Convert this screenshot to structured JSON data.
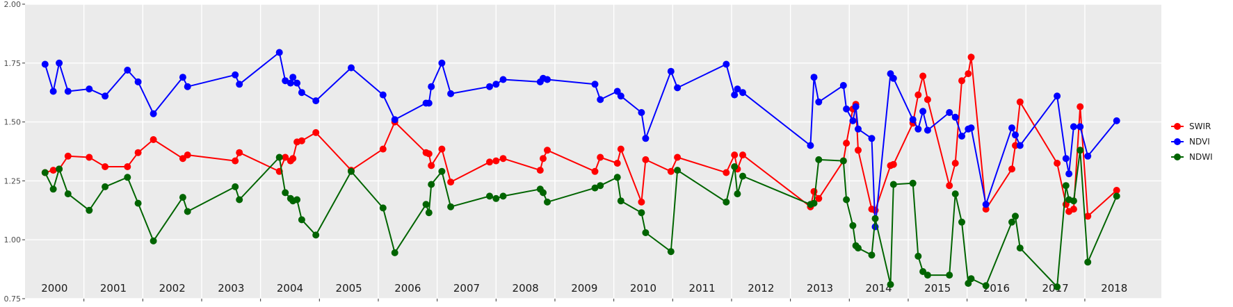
{
  "chart_data": {
    "type": "line",
    "title": "",
    "xlabel": "",
    "ylabel": "",
    "xlim": [
      2000.0,
      2019.3
    ],
    "ylim": [
      0.75,
      2.0
    ],
    "yticks": [
      0.75,
      1.0,
      1.25,
      1.5,
      1.75,
      2.0
    ],
    "ytick_labels": [
      "0.75",
      "1.00",
      "1.25",
      "1.50",
      "1.75",
      "2.00"
    ],
    "year_labels": [
      "2000",
      "2001",
      "2002",
      "2003",
      "2004",
      "2005",
      "2006",
      "2007",
      "2008",
      "2009",
      "2010",
      "2011",
      "2012",
      "2013",
      "2014",
      "2015",
      "2016",
      "2017",
      "2018"
    ],
    "grid": true,
    "legend_position": "right",
    "series": [
      {
        "name": "SWIR",
        "color": "#ff0000",
        "points": [
          [
            2000.34,
            1.285
          ],
          [
            2000.48,
            1.295
          ],
          [
            2000.58,
            1.3
          ],
          [
            2000.73,
            1.355
          ],
          [
            2001.09,
            1.35
          ],
          [
            2001.36,
            1.31
          ],
          [
            2001.74,
            1.31
          ],
          [
            2001.92,
            1.37
          ],
          [
            2002.18,
            1.425
          ],
          [
            2002.68,
            1.345
          ],
          [
            2002.76,
            1.36
          ],
          [
            2003.57,
            1.335
          ],
          [
            2003.64,
            1.37
          ],
          [
            2004.32,
            1.29
          ],
          [
            2004.42,
            1.35
          ],
          [
            2004.51,
            1.335
          ],
          [
            2004.55,
            1.345
          ],
          [
            2004.62,
            1.415
          ],
          [
            2004.7,
            1.42
          ],
          [
            2004.94,
            1.455
          ],
          [
            2005.54,
            1.295
          ],
          [
            2006.08,
            1.385
          ],
          [
            2006.28,
            1.5
          ],
          [
            2006.81,
            1.37
          ],
          [
            2006.86,
            1.365
          ],
          [
            2006.9,
            1.315
          ],
          [
            2007.08,
            1.385
          ],
          [
            2007.23,
            1.245
          ],
          [
            2007.89,
            1.33
          ],
          [
            2008.0,
            1.335
          ],
          [
            2008.12,
            1.345
          ],
          [
            2008.75,
            1.295
          ],
          [
            2008.8,
            1.345
          ],
          [
            2008.87,
            1.38
          ],
          [
            2009.68,
            1.29
          ],
          [
            2009.77,
            1.35
          ],
          [
            2010.06,
            1.325
          ],
          [
            2010.12,
            1.385
          ],
          [
            2010.47,
            1.16
          ],
          [
            2010.54,
            1.34
          ],
          [
            2010.97,
            1.29
          ],
          [
            2011.08,
            1.35
          ],
          [
            2011.91,
            1.285
          ],
          [
            2012.05,
            1.36
          ],
          [
            2012.1,
            1.3
          ],
          [
            2012.19,
            1.36
          ],
          [
            2013.34,
            1.14
          ],
          [
            2013.4,
            1.205
          ],
          [
            2013.48,
            1.175
          ],
          [
            2013.9,
            1.335
          ],
          [
            2013.95,
            1.41
          ],
          [
            2014.06,
            1.555
          ],
          [
            2014.11,
            1.575
          ],
          [
            2014.15,
            1.38
          ],
          [
            2014.38,
            1.13
          ],
          [
            2014.44,
            1.125
          ],
          [
            2014.7,
            1.315
          ],
          [
            2014.75,
            1.32
          ],
          [
            2015.08,
            1.495
          ],
          [
            2015.17,
            1.615
          ],
          [
            2015.25,
            1.695
          ],
          [
            2015.33,
            1.595
          ],
          [
            2015.7,
            1.23
          ],
          [
            2015.8,
            1.325
          ],
          [
            2015.91,
            1.675
          ],
          [
            2016.02,
            1.705
          ],
          [
            2016.07,
            1.775
          ],
          [
            2016.32,
            1.13
          ],
          [
            2016.76,
            1.3
          ],
          [
            2016.82,
            1.4
          ],
          [
            2016.9,
            1.585
          ],
          [
            2017.53,
            1.325
          ],
          [
            2017.68,
            1.15
          ],
          [
            2017.73,
            1.12
          ],
          [
            2017.81,
            1.13
          ],
          [
            2017.92,
            1.565
          ],
          [
            2018.05,
            1.1
          ],
          [
            2018.54,
            1.21
          ]
        ]
      },
      {
        "name": "NDVI",
        "color": "#0000ff",
        "points": [
          [
            2000.34,
            1.745
          ],
          [
            2000.48,
            1.63
          ],
          [
            2000.58,
            1.75
          ],
          [
            2000.73,
            1.63
          ],
          [
            2001.09,
            1.64
          ],
          [
            2001.36,
            1.61
          ],
          [
            2001.74,
            1.72
          ],
          [
            2001.92,
            1.67
          ],
          [
            2002.18,
            1.535
          ],
          [
            2002.68,
            1.69
          ],
          [
            2002.76,
            1.65
          ],
          [
            2003.57,
            1.7
          ],
          [
            2003.64,
            1.66
          ],
          [
            2004.32,
            1.795
          ],
          [
            2004.42,
            1.675
          ],
          [
            2004.51,
            1.665
          ],
          [
            2004.55,
            1.69
          ],
          [
            2004.62,
            1.665
          ],
          [
            2004.7,
            1.625
          ],
          [
            2004.94,
            1.59
          ],
          [
            2005.54,
            1.73
          ],
          [
            2006.08,
            1.615
          ],
          [
            2006.28,
            1.51
          ],
          [
            2006.81,
            1.58
          ],
          [
            2006.86,
            1.58
          ],
          [
            2006.9,
            1.65
          ],
          [
            2007.08,
            1.75
          ],
          [
            2007.23,
            1.62
          ],
          [
            2007.89,
            1.65
          ],
          [
            2008.0,
            1.66
          ],
          [
            2008.12,
            1.68
          ],
          [
            2008.75,
            1.67
          ],
          [
            2008.8,
            1.685
          ],
          [
            2008.87,
            1.68
          ],
          [
            2009.68,
            1.66
          ],
          [
            2009.77,
            1.595
          ],
          [
            2010.06,
            1.63
          ],
          [
            2010.12,
            1.61
          ],
          [
            2010.47,
            1.54
          ],
          [
            2010.54,
            1.43
          ],
          [
            2010.97,
            1.715
          ],
          [
            2011.08,
            1.645
          ],
          [
            2011.91,
            1.745
          ],
          [
            2012.05,
            1.615
          ],
          [
            2012.1,
            1.64
          ],
          [
            2012.19,
            1.625
          ],
          [
            2013.34,
            1.4
          ],
          [
            2013.4,
            1.69
          ],
          [
            2013.48,
            1.585
          ],
          [
            2013.9,
            1.655
          ],
          [
            2013.95,
            1.555
          ],
          [
            2014.06,
            1.505
          ],
          [
            2014.11,
            1.565
          ],
          [
            2014.15,
            1.47
          ],
          [
            2014.38,
            1.43
          ],
          [
            2014.44,
            1.055
          ],
          [
            2014.7,
            1.705
          ],
          [
            2014.75,
            1.685
          ],
          [
            2015.08,
            1.51
          ],
          [
            2015.17,
            1.47
          ],
          [
            2015.25,
            1.545
          ],
          [
            2015.33,
            1.465
          ],
          [
            2015.7,
            1.54
          ],
          [
            2015.8,
            1.52
          ],
          [
            2015.91,
            1.44
          ],
          [
            2016.02,
            1.47
          ],
          [
            2016.07,
            1.475
          ],
          [
            2016.32,
            1.15
          ],
          [
            2016.76,
            1.475
          ],
          [
            2016.82,
            1.445
          ],
          [
            2016.9,
            1.4
          ],
          [
            2017.53,
            1.61
          ],
          [
            2017.68,
            1.345
          ],
          [
            2017.73,
            1.28
          ],
          [
            2017.81,
            1.48
          ],
          [
            2017.92,
            1.48
          ],
          [
            2018.05,
            1.355
          ],
          [
            2018.54,
            1.505
          ]
        ]
      },
      {
        "name": "NDWI",
        "color": "#006400",
        "points": [
          [
            2000.34,
            1.285
          ],
          [
            2000.48,
            1.215
          ],
          [
            2000.58,
            1.3
          ],
          [
            2000.73,
            1.195
          ],
          [
            2001.09,
            1.125
          ],
          [
            2001.36,
            1.225
          ],
          [
            2001.74,
            1.265
          ],
          [
            2001.92,
            1.155
          ],
          [
            2002.18,
            0.995
          ],
          [
            2002.68,
            1.18
          ],
          [
            2002.76,
            1.12
          ],
          [
            2003.57,
            1.225
          ],
          [
            2003.64,
            1.17
          ],
          [
            2004.32,
            1.35
          ],
          [
            2004.42,
            1.2
          ],
          [
            2004.51,
            1.175
          ],
          [
            2004.55,
            1.165
          ],
          [
            2004.62,
            1.17
          ],
          [
            2004.7,
            1.085
          ],
          [
            2004.94,
            1.02
          ],
          [
            2005.54,
            1.29
          ],
          [
            2006.08,
            1.135
          ],
          [
            2006.28,
            0.945
          ],
          [
            2006.81,
            1.15
          ],
          [
            2006.86,
            1.115
          ],
          [
            2006.9,
            1.235
          ],
          [
            2007.08,
            1.29
          ],
          [
            2007.23,
            1.14
          ],
          [
            2007.89,
            1.185
          ],
          [
            2008.0,
            1.175
          ],
          [
            2008.12,
            1.185
          ],
          [
            2008.75,
            1.215
          ],
          [
            2008.8,
            1.2
          ],
          [
            2008.87,
            1.16
          ],
          [
            2009.68,
            1.22
          ],
          [
            2009.77,
            1.23
          ],
          [
            2010.06,
            1.265
          ],
          [
            2010.12,
            1.165
          ],
          [
            2010.47,
            1.115
          ],
          [
            2010.54,
            1.03
          ],
          [
            2010.97,
            0.95
          ],
          [
            2011.08,
            1.295
          ],
          [
            2011.91,
            1.16
          ],
          [
            2012.05,
            1.31
          ],
          [
            2012.1,
            1.195
          ],
          [
            2012.19,
            1.27
          ],
          [
            2013.34,
            1.15
          ],
          [
            2013.4,
            1.155
          ],
          [
            2013.48,
            1.34
          ],
          [
            2013.9,
            1.335
          ],
          [
            2013.95,
            1.17
          ],
          [
            2014.06,
            1.06
          ],
          [
            2014.11,
            0.975
          ],
          [
            2014.15,
            0.965
          ],
          [
            2014.38,
            0.935
          ],
          [
            2014.44,
            1.09
          ],
          [
            2014.7,
            0.81
          ],
          [
            2014.75,
            1.235
          ],
          [
            2015.08,
            1.24
          ],
          [
            2015.17,
            0.93
          ],
          [
            2015.25,
            0.865
          ],
          [
            2015.33,
            0.85
          ],
          [
            2015.7,
            0.85
          ],
          [
            2015.8,
            1.195
          ],
          [
            2015.91,
            1.075
          ],
          [
            2016.02,
            0.815
          ],
          [
            2016.07,
            0.835
          ],
          [
            2016.32,
            0.805
          ],
          [
            2016.76,
            1.075
          ],
          [
            2016.82,
            1.1
          ],
          [
            2016.9,
            0.965
          ],
          [
            2017.53,
            0.8
          ],
          [
            2017.68,
            1.23
          ],
          [
            2017.73,
            1.17
          ],
          [
            2017.81,
            1.165
          ],
          [
            2017.92,
            1.38
          ],
          [
            2018.05,
            0.905
          ],
          [
            2018.54,
            1.185
          ]
        ]
      }
    ]
  }
}
